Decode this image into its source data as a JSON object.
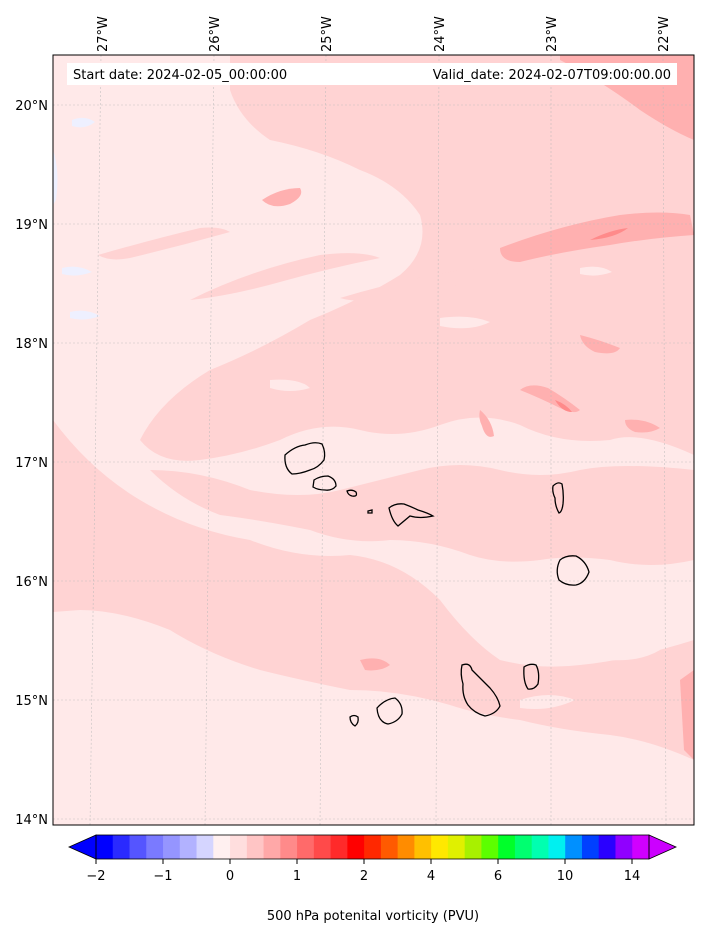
{
  "map": {
    "info_box": {
      "start_date": "Start date: 2024-02-05_00:00:00",
      "valid_date": "Valid_date: 2024-02-07T09:00:00.00"
    },
    "lon_labels": [
      "27°W",
      "26°W",
      "25°W",
      "24°W",
      "23°W",
      "22°W"
    ],
    "lat_labels": [
      "20°N",
      "19°N",
      "18°N",
      "17°N",
      "16°N",
      "15°N",
      "14°N"
    ],
    "islands": [
      "Santo Antão",
      "São Vicente",
      "Santa Luzia",
      "São Nicolau",
      "Sal",
      "Boa Vista",
      "Maio",
      "Santiago",
      "Fogo",
      "Brava"
    ],
    "field": "500 hPa potential vorticity",
    "background_color": "#ffe8e8"
  },
  "colorbar": {
    "label": "500 hPa potenital vorticity (PVU)",
    "ticks": [
      "−2",
      "−1",
      "0",
      "1",
      "2",
      "4",
      "6",
      "10",
      "14"
    ],
    "levels": [
      -2,
      -1.5,
      -1,
      -0.75,
      -0.5,
      -0.25,
      0,
      0.25,
      0.5,
      0.75,
      1,
      1.25,
      1.5,
      1.75,
      2,
      2.5,
      3,
      3.5,
      4,
      4.5,
      5,
      5.5,
      6,
      7,
      8,
      9,
      10,
      11,
      12,
      13,
      14,
      15
    ],
    "colors": [
      "#0000ff",
      "#2a2aff",
      "#5555ff",
      "#7a7aff",
      "#9595ff",
      "#b2b2ff",
      "#d5d5ff",
      "#fff0f0",
      "#ffdede",
      "#ffc5c5",
      "#ffa8a8",
      "#ff8a8a",
      "#ff6a6a",
      "#ff4a4a",
      "#ff2a2a",
      "#ff0000",
      "#ff2800",
      "#ff5a00",
      "#ff8c00",
      "#ffc000",
      "#ffe800",
      "#e0f000",
      "#a8f000",
      "#5cff00",
      "#00ff2a",
      "#00ff70",
      "#00ffb0",
      "#00f0f0",
      "#0090ff",
      "#0040ff",
      "#2a00ff",
      "#9000ff",
      "#d000ff"
    ]
  }
}
